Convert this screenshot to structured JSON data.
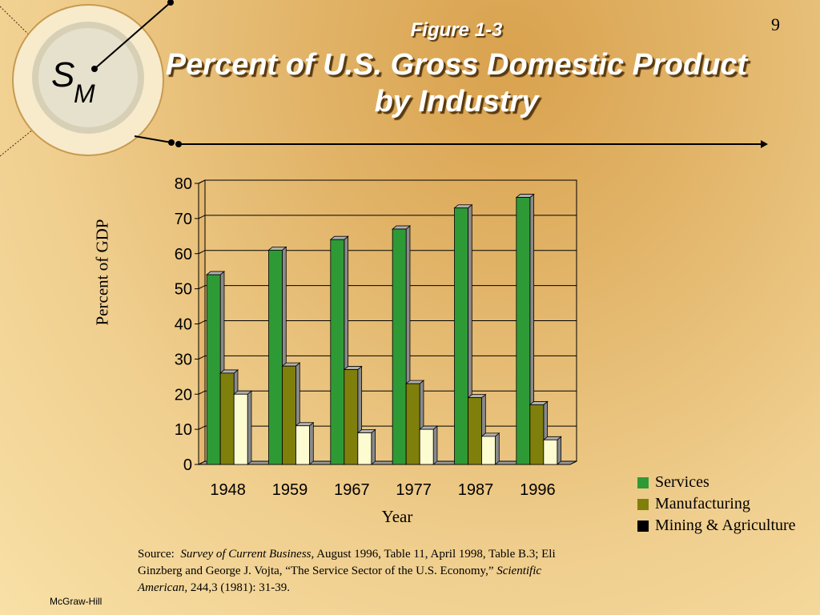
{
  "slide": {
    "number": "9",
    "figure_label": "Figure 1-3",
    "title": "Percent of U.S. Gross Domestic Product by Industry"
  },
  "logo": {
    "letter_s": "S",
    "letter_m": "M"
  },
  "source": {
    "prefix": "Source:",
    "journal1": "Survey of Current Business,",
    "text1": "August 1996, Table 11, April 1998, Table B.3;  Eli Ginzberg and George J. Vojta, “The Service Sector of the U.S. Economy,”",
    "journal2": "Scientific American",
    "text2": ", 244,3 (1981): 31-39."
  },
  "footer": {
    "publisher": "McGraw-Hill"
  },
  "colors": {
    "services": "#2e9a36",
    "manufacturing": "#7f7f0c",
    "mining": "#fdfbd0",
    "legend_mining": "#000000"
  },
  "chart_data": {
    "type": "bar",
    "title": "Percent of U.S. Gross Domestic Product by Industry",
    "xlabel": "Year",
    "ylabel": "Percent of GDP",
    "ylim": [
      0,
      80
    ],
    "yticks": [
      0,
      10,
      20,
      30,
      40,
      50,
      60,
      70,
      80
    ],
    "grid": true,
    "legend_position": "right",
    "categories": [
      "1948",
      "1959",
      "1967",
      "1977",
      "1987",
      "1996"
    ],
    "series": [
      {
        "name": "Services",
        "values": [
          54,
          61,
          64,
          67,
          73,
          76
        ]
      },
      {
        "name": "Manufacturing",
        "values": [
          26,
          28,
          27,
          23,
          19,
          17
        ]
      },
      {
        "name": "Mining & Agriculture",
        "values": [
          20,
          11,
          9,
          10,
          8,
          7
        ]
      }
    ]
  }
}
